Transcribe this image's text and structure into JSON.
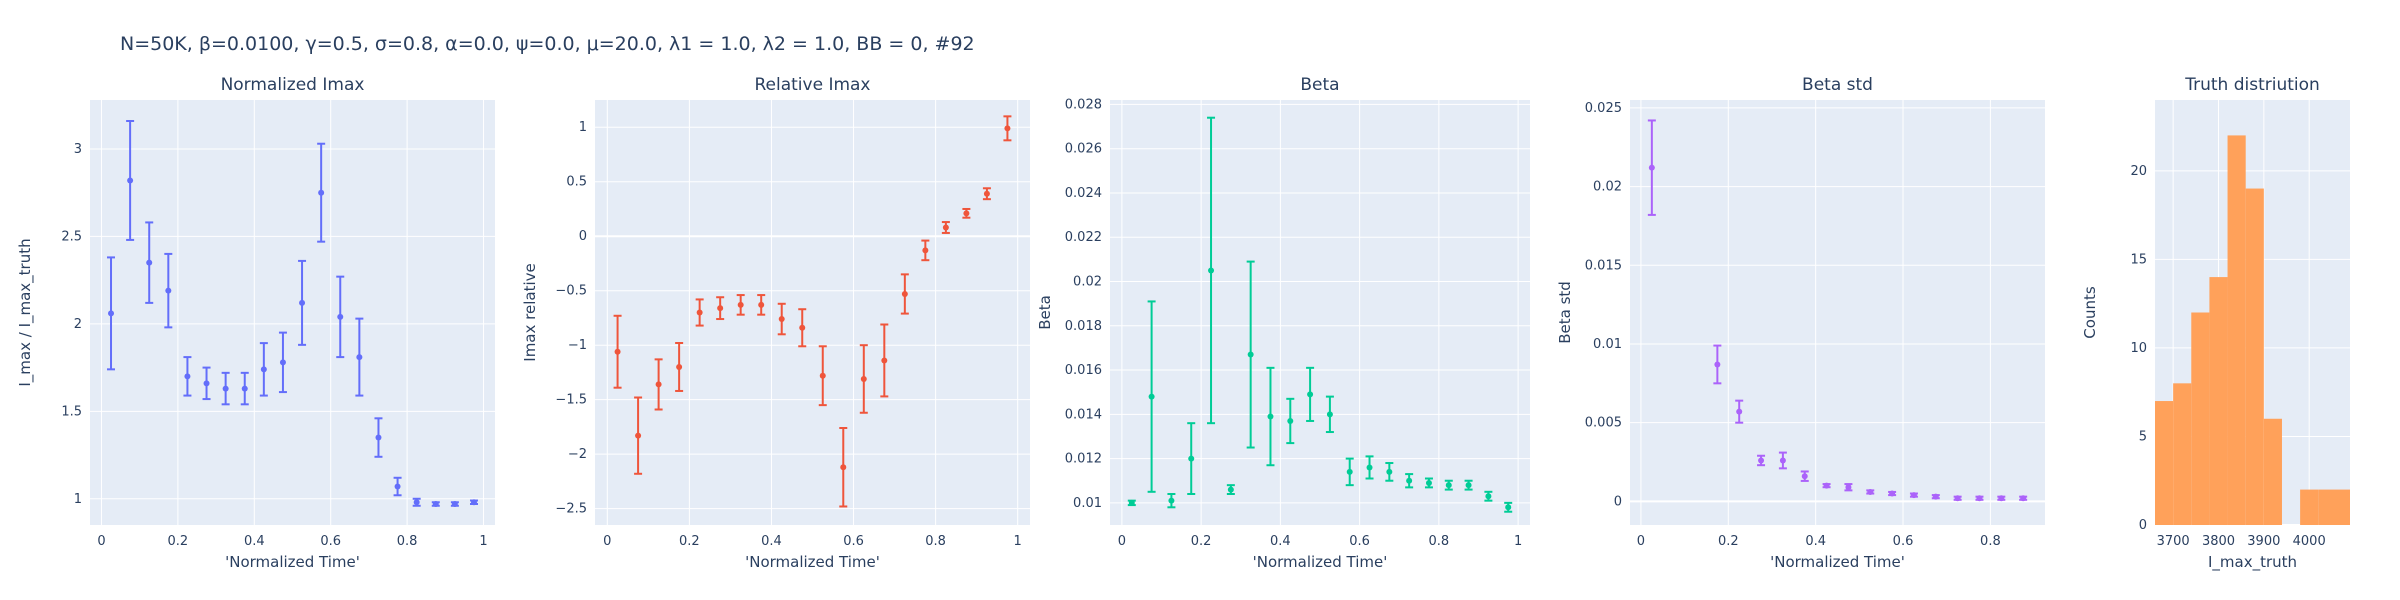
{
  "figure": {
    "title": "N=50K, β=0.0100, γ=0.5, σ=0.8,  α=0.0, ψ=0.0, μ=20.0, λ1 = 1.0, λ2 = 1.0, BB = 0, #92",
    "background": "#ffffff",
    "plot_background": "#e5ecf6",
    "grid_color": "#ffffff"
  },
  "chart_data": [
    {
      "type": "scatter",
      "title": "Normalized Imax",
      "xlabel": "'Normalized Time'",
      "ylabel": "I_max / I_max_truth",
      "color": "#636efa",
      "xlim": [
        -0.03,
        1.03
      ],
      "ylim": [
        0.85,
        3.28
      ],
      "xticks": [
        0,
        0.2,
        0.4,
        0.6,
        0.8,
        1
      ],
      "xticklabels": [
        "0",
        "0.2",
        "0.4",
        "0.6",
        "0.8",
        "1"
      ],
      "yticks": [
        1,
        1.5,
        2,
        2.5,
        3
      ],
      "yticklabels": [
        "1",
        "1.5",
        "2",
        "2.5",
        "3"
      ],
      "x": [
        0.025,
        0.075,
        0.125,
        0.175,
        0.225,
        0.275,
        0.325,
        0.375,
        0.425,
        0.475,
        0.525,
        0.575,
        0.625,
        0.675,
        0.725,
        0.775,
        0.825,
        0.875,
        0.925,
        0.975
      ],
      "y": [
        2.06,
        2.82,
        2.35,
        2.19,
        1.7,
        1.66,
        1.63,
        1.63,
        1.74,
        1.78,
        2.12,
        2.75,
        2.04,
        1.81,
        1.35,
        1.07,
        0.98,
        0.97,
        0.97,
        0.98
      ],
      "err": [
        0.32,
        0.34,
        0.23,
        0.21,
        0.11,
        0.09,
        0.09,
        0.09,
        0.15,
        0.17,
        0.24,
        0.28,
        0.23,
        0.22,
        0.11,
        0.05,
        0.02,
        0.01,
        0.01,
        0.01
      ]
    },
    {
      "type": "scatter",
      "title": "Relative Imax",
      "xlabel": "'Normalized Time'",
      "ylabel": "Imax relative",
      "color": "#ef553b",
      "xlim": [
        -0.03,
        1.03
      ],
      "ylim": [
        -2.65,
        1.25
      ],
      "xticks": [
        0,
        0.2,
        0.4,
        0.6,
        0.8,
        1
      ],
      "xticklabels": [
        "0",
        "0.2",
        "0.4",
        "0.6",
        "0.8",
        "1"
      ],
      "yticks": [
        -2.5,
        -2,
        -1.5,
        -1,
        -0.5,
        0,
        0.5,
        1
      ],
      "yticklabels": [
        "−2.5",
        "−2",
        "−1.5",
        "−1",
        "−0.5",
        "0",
        "0.5",
        "1"
      ],
      "x": [
        0.025,
        0.075,
        0.125,
        0.175,
        0.225,
        0.275,
        0.325,
        0.375,
        0.425,
        0.475,
        0.525,
        0.575,
        0.625,
        0.675,
        0.725,
        0.775,
        0.825,
        0.875,
        0.925,
        0.975
      ],
      "y": [
        -1.06,
        -1.83,
        -1.36,
        -1.2,
        -0.7,
        -0.66,
        -0.63,
        -0.63,
        -0.76,
        -0.84,
        -1.28,
        -2.12,
        -1.31,
        -1.14,
        -0.53,
        -0.13,
        0.08,
        0.21,
        0.39,
        0.99
      ],
      "err": [
        0.33,
        0.35,
        0.23,
        0.22,
        0.12,
        0.1,
        0.09,
        0.09,
        0.14,
        0.17,
        0.27,
        0.36,
        0.31,
        0.33,
        0.18,
        0.09,
        0.05,
        0.04,
        0.05,
        0.11
      ]
    },
    {
      "type": "scatter",
      "title": "Beta",
      "xlabel": "'Normalized Time'",
      "ylabel": "Beta",
      "color": "#00cc96",
      "xlim": [
        -0.03,
        1.03
      ],
      "ylim": [
        0.009,
        0.0282
      ],
      "xticks": [
        0,
        0.2,
        0.4,
        0.6,
        0.8,
        1
      ],
      "xticklabels": [
        "0",
        "0.2",
        "0.4",
        "0.6",
        "0.8",
        "1"
      ],
      "yticks": [
        0.01,
        0.012,
        0.014,
        0.016,
        0.018,
        0.02,
        0.022,
        0.024,
        0.026,
        0.028
      ],
      "yticklabels": [
        "0.01",
        "0.012",
        "0.014",
        "0.016",
        "0.018",
        "0.02",
        "0.022",
        "0.024",
        "0.026",
        "0.028"
      ],
      "x": [
        0.025,
        0.075,
        0.125,
        0.175,
        0.225,
        0.275,
        0.325,
        0.375,
        0.425,
        0.475,
        0.525,
        0.575,
        0.625,
        0.675,
        0.725,
        0.775,
        0.825,
        0.875,
        0.925,
        0.975
      ],
      "y": [
        0.01,
        0.0148,
        0.0101,
        0.012,
        0.0205,
        0.0106,
        0.0167,
        0.0139,
        0.0137,
        0.0149,
        0.014,
        0.0114,
        0.0116,
        0.0114,
        0.011,
        0.0109,
        0.0108,
        0.0108,
        0.0103,
        0.0098
      ],
      "err": [
        0.0001,
        0.0043,
        0.0003,
        0.0016,
        0.0069,
        0.0002,
        0.0042,
        0.0022,
        0.001,
        0.0012,
        0.0008,
        0.0006,
        0.0005,
        0.0004,
        0.0003,
        0.0002,
        0.0002,
        0.0002,
        0.0002,
        0.0002
      ]
    },
    {
      "type": "scatter",
      "title": "Beta std",
      "xlabel": "'Normalized Time'",
      "ylabel": "Beta std",
      "color": "#ab63fa",
      "xlim": [
        -0.025,
        0.925
      ],
      "ylim": [
        -0.0015,
        0.0255
      ],
      "xticks": [
        0,
        0.2,
        0.4,
        0.6,
        0.8
      ],
      "xticklabels": [
        "0",
        "0.2",
        "0.4",
        "0.6",
        "0.8"
      ],
      "yticks": [
        0,
        0.005,
        0.01,
        0.015,
        0.02,
        0.025
      ],
      "yticklabels": [
        "0",
        "0.005",
        "0.01",
        "0.015",
        "0.02",
        "0.025"
      ],
      "x": [
        0.025,
        0.175,
        0.225,
        0.275,
        0.325,
        0.375,
        0.425,
        0.475,
        0.525,
        0.575,
        0.625,
        0.675,
        0.725,
        0.775,
        0.825,
        0.875
      ],
      "y": [
        0.0212,
        0.0087,
        0.0057,
        0.0026,
        0.0026,
        0.0016,
        0.001,
        0.0009,
        0.0006,
        0.0005,
        0.0004,
        0.0003,
        0.0002,
        0.0002,
        0.0002,
        0.0002
      ],
      "err": [
        0.003,
        0.0012,
        0.0007,
        0.0003,
        0.0005,
        0.0003,
        0.0001,
        0.0002,
        0.0001,
        0.0001,
        0.0001,
        0.0001,
        0.0001,
        0.0001,
        0.0001,
        0.0001
      ]
    },
    {
      "type": "histogram",
      "title": "Truth distriution",
      "xlabel": "I_max_truth",
      "ylabel": "Counts",
      "color": "#ffa15a",
      "xlim": [
        3660,
        4090
      ],
      "ylim": [
        0,
        24
      ],
      "xticks": [
        3700,
        3800,
        3900,
        4000
      ],
      "xticklabels": [
        "3700",
        "3800",
        "3900",
        "4000"
      ],
      "yticks": [
        0,
        5,
        10,
        15,
        20
      ],
      "yticklabels": [
        "0",
        "5",
        "10",
        "15",
        "20"
      ],
      "bins": [
        {
          "x0": 3660,
          "x1": 3700,
          "count": 7
        },
        {
          "x0": 3700,
          "x1": 3740,
          "count": 8
        },
        {
          "x0": 3740,
          "x1": 3780,
          "count": 12
        },
        {
          "x0": 3780,
          "x1": 3820,
          "count": 14
        },
        {
          "x0": 3820,
          "x1": 3860,
          "count": 22
        },
        {
          "x0": 3860,
          "x1": 3900,
          "count": 19
        },
        {
          "x0": 3900,
          "x1": 3940,
          "count": 6
        },
        {
          "x0": 3940,
          "x1": 3980,
          "count": 0
        },
        {
          "x0": 3980,
          "x1": 4020,
          "count": 2
        },
        {
          "x0": 4020,
          "x1": 4090,
          "count": 2
        }
      ]
    }
  ]
}
